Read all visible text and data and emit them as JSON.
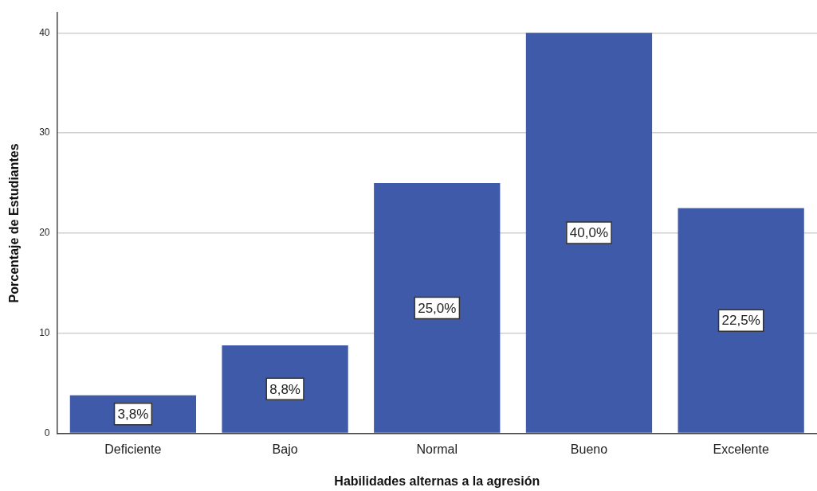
{
  "chart_data": {
    "type": "bar",
    "xlabel": "Habilidades alternas a la agresión",
    "ylabel": "Porcentaje de Estudiantes",
    "categories": [
      "Deficiente",
      "Bajo",
      "Normal",
      "Bueno",
      "Excelente"
    ],
    "values": [
      3.8,
      8.8,
      25.0,
      40.0,
      22.5
    ],
    "color": "#3e5aa8",
    "value_labels": [
      "3,8%",
      "8,8%",
      "25,0%",
      "40,0%",
      "22,5%"
    ],
    "ylim": [
      0,
      42
    ],
    "yticks": [
      0,
      10,
      20,
      30,
      40
    ],
    "grid": "y"
  }
}
